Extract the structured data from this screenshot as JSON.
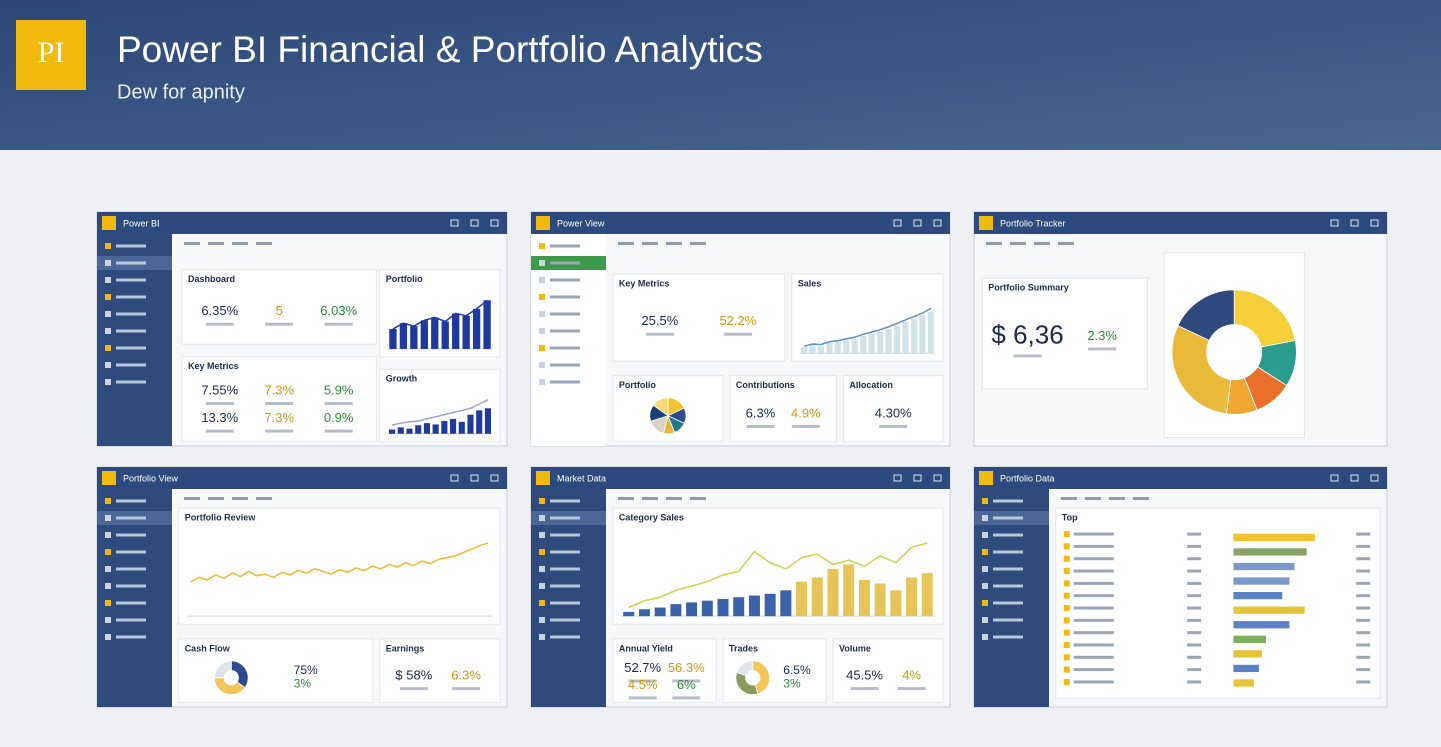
{
  "header": {
    "logo": "PI",
    "title": "Power BI Financial & Portfolio Analytics",
    "subtitle": "Dew for apnity"
  },
  "windows": [
    {
      "title": "Power BI",
      "widgets": [
        {
          "kind": "kpis",
          "heading": "Dashboard",
          "items": [
            "6.35%",
            "5",
            "6.03%"
          ]
        },
        {
          "kind": "bar",
          "heading": "Portfolio",
          "color": "#1f3a9e",
          "ylim": [
            0,
            100
          ],
          "values": [
            35,
            45,
            40,
            50,
            55,
            48,
            62,
            58,
            70,
            85
          ]
        },
        {
          "kind": "kpis",
          "heading": "Key Metrics",
          "items": [
            "7.55%",
            "7.3%",
            "5.9%",
            "13.3%",
            "7.3%",
            "0.9%"
          ]
        },
        {
          "kind": "combo",
          "heading": "Growth",
          "color": "#1f3a9e",
          "line_color": "#9aa7c0",
          "ylim": [
            0,
            100
          ],
          "values": [
            10,
            15,
            12,
            20,
            25,
            22,
            30,
            35,
            28,
            45,
            55,
            60
          ],
          "line": [
            20,
            25,
            28,
            30,
            35,
            40,
            45,
            50,
            55,
            60,
            70,
            80
          ]
        }
      ]
    },
    {
      "title": "Power View",
      "widgets": [
        {
          "kind": "kpis",
          "heading": "Key Metrics",
          "items": [
            "25.5%",
            "52.2%"
          ]
        },
        {
          "kind": "combo",
          "heading": "Sales",
          "color": "#cfe1ea",
          "line_color": "#5a8fc0",
          "ylim": [
            0,
            100
          ],
          "values": [
            10,
            14,
            12,
            18,
            20,
            22,
            25,
            30,
            34,
            38,
            42,
            48,
            55,
            60,
            66,
            72
          ],
          "line": [
            12,
            16,
            15,
            20,
            22,
            25,
            28,
            33,
            37,
            41,
            46,
            52,
            58,
            64,
            70,
            78
          ]
        },
        {
          "kind": "pie",
          "heading": "Portfolio",
          "donut": false,
          "values": [
            18,
            14,
            12,
            10,
            16,
            15,
            15
          ],
          "colors": [
            "#f2c230",
            "#2f4b8c",
            "#1a7a8a",
            "#e8b640",
            "#d9d2c3",
            "#173f7a",
            "#f5d978"
          ]
        },
        {
          "kind": "kpis",
          "heading": "Contributions",
          "items": [
            "6.3%",
            "4.9%"
          ]
        },
        {
          "kind": "kpis",
          "heading": "Allocation",
          "items": [
            "4.30%"
          ]
        }
      ]
    },
    {
      "title": "Portfolio Tracker",
      "widgets": [
        {
          "kind": "kpis",
          "heading": "Portfolio Summary",
          "items": [
            "$ 6,36",
            "2.3%"
          ]
        },
        {
          "kind": "pie",
          "donut": true,
          "values": [
            22,
            12,
            10,
            8,
            30,
            18
          ],
          "colors": [
            "#f5cf3a",
            "#2a9d8f",
            "#e8702a",
            "#f0a832",
            "#e9b93a",
            "#2d4a7e"
          ]
        }
      ]
    },
    {
      "title": "Portfolio View",
      "widgets": [
        {
          "kind": "line",
          "heading": "Portfolio Review",
          "color": "#f2b72c",
          "ylim": [
            0,
            100
          ],
          "values": [
            40,
            45,
            42,
            48,
            44,
            50,
            46,
            52,
            47,
            49,
            45,
            51,
            48,
            53,
            50,
            55,
            52,
            49,
            54,
            51,
            56,
            53,
            58,
            55,
            60,
            57,
            62,
            59,
            64,
            61,
            66,
            68,
            70,
            74,
            78,
            82,
            85
          ]
        },
        {
          "kind": "pie",
          "heading": "Cash Flow",
          "donut": true,
          "values": [
            35,
            40,
            25
          ],
          "colors": [
            "#2d4a8e",
            "#f2c65a",
            "#dfe3ea"
          ],
          "items": [
            "75%",
            "3%"
          ]
        },
        {
          "kind": "kpis",
          "heading": "Earnings",
          "items": [
            "$ 58%",
            "6.3%"
          ]
        }
      ]
    },
    {
      "title": "Market Data",
      "widgets": [
        {
          "kind": "combo",
          "heading": "Category Sales",
          "color": "#3a63a8",
          "bar_colors": [
            "#3a63a8",
            "#3a63a8",
            "#3a63a8",
            "#3a63a8",
            "#3a63a8",
            "#3a63a8",
            "#3a63a8",
            "#3a63a8",
            "#3a63a8",
            "#3a63a8",
            "#3a63a8",
            "#e6c45a",
            "#e6c45a",
            "#e6c45a",
            "#e6c45a",
            "#e6c45a",
            "#e6c45a",
            "#e6c45a",
            "#e6c45a",
            "#e6c45a"
          ],
          "line_color": "#c9d64a",
          "ylim": [
            0,
            100
          ],
          "values": [
            5,
            8,
            10,
            14,
            16,
            18,
            20,
            22,
            24,
            26,
            30,
            40,
            45,
            55,
            60,
            42,
            38,
            30,
            45,
            50
          ],
          "line": [
            10,
            18,
            22,
            30,
            35,
            40,
            48,
            52,
            75,
            62,
            55,
            68,
            72,
            60,
            65,
            58,
            70,
            62,
            80,
            85
          ]
        },
        {
          "kind": "kpis",
          "heading": "Annual Yield",
          "items": [
            "52.7%",
            "56.3%",
            "4.5%",
            "6%"
          ]
        },
        {
          "kind": "pie",
          "heading": "Trades",
          "donut": true,
          "values": [
            45,
            35,
            20
          ],
          "colors": [
            "#f2c65a",
            "#8a9a5b",
            "#dfe3ea"
          ],
          "items": [
            "6.5%",
            "3%"
          ]
        },
        {
          "kind": "kpis",
          "heading": "Volume",
          "items": [
            "45.5%",
            "4%"
          ]
        }
      ]
    },
    {
      "title": "Portfolio Data",
      "widgets": [
        {
          "kind": "hbar",
          "heading": "Top",
          "xlim": [
            0,
            100
          ],
          "values": [
            80,
            72,
            60,
            55,
            48,
            70,
            55,
            32,
            28,
            25,
            20
          ],
          "colors": [
            "#f2c230",
            "#8aa36a",
            "#7a98c9",
            "#7a98c9",
            "#5a82c7",
            "#e6c437",
            "#5a82c7",
            "#7bb060",
            "#e6c437",
            "#5a82c7",
            "#e6c437"
          ]
        }
      ]
    }
  ]
}
